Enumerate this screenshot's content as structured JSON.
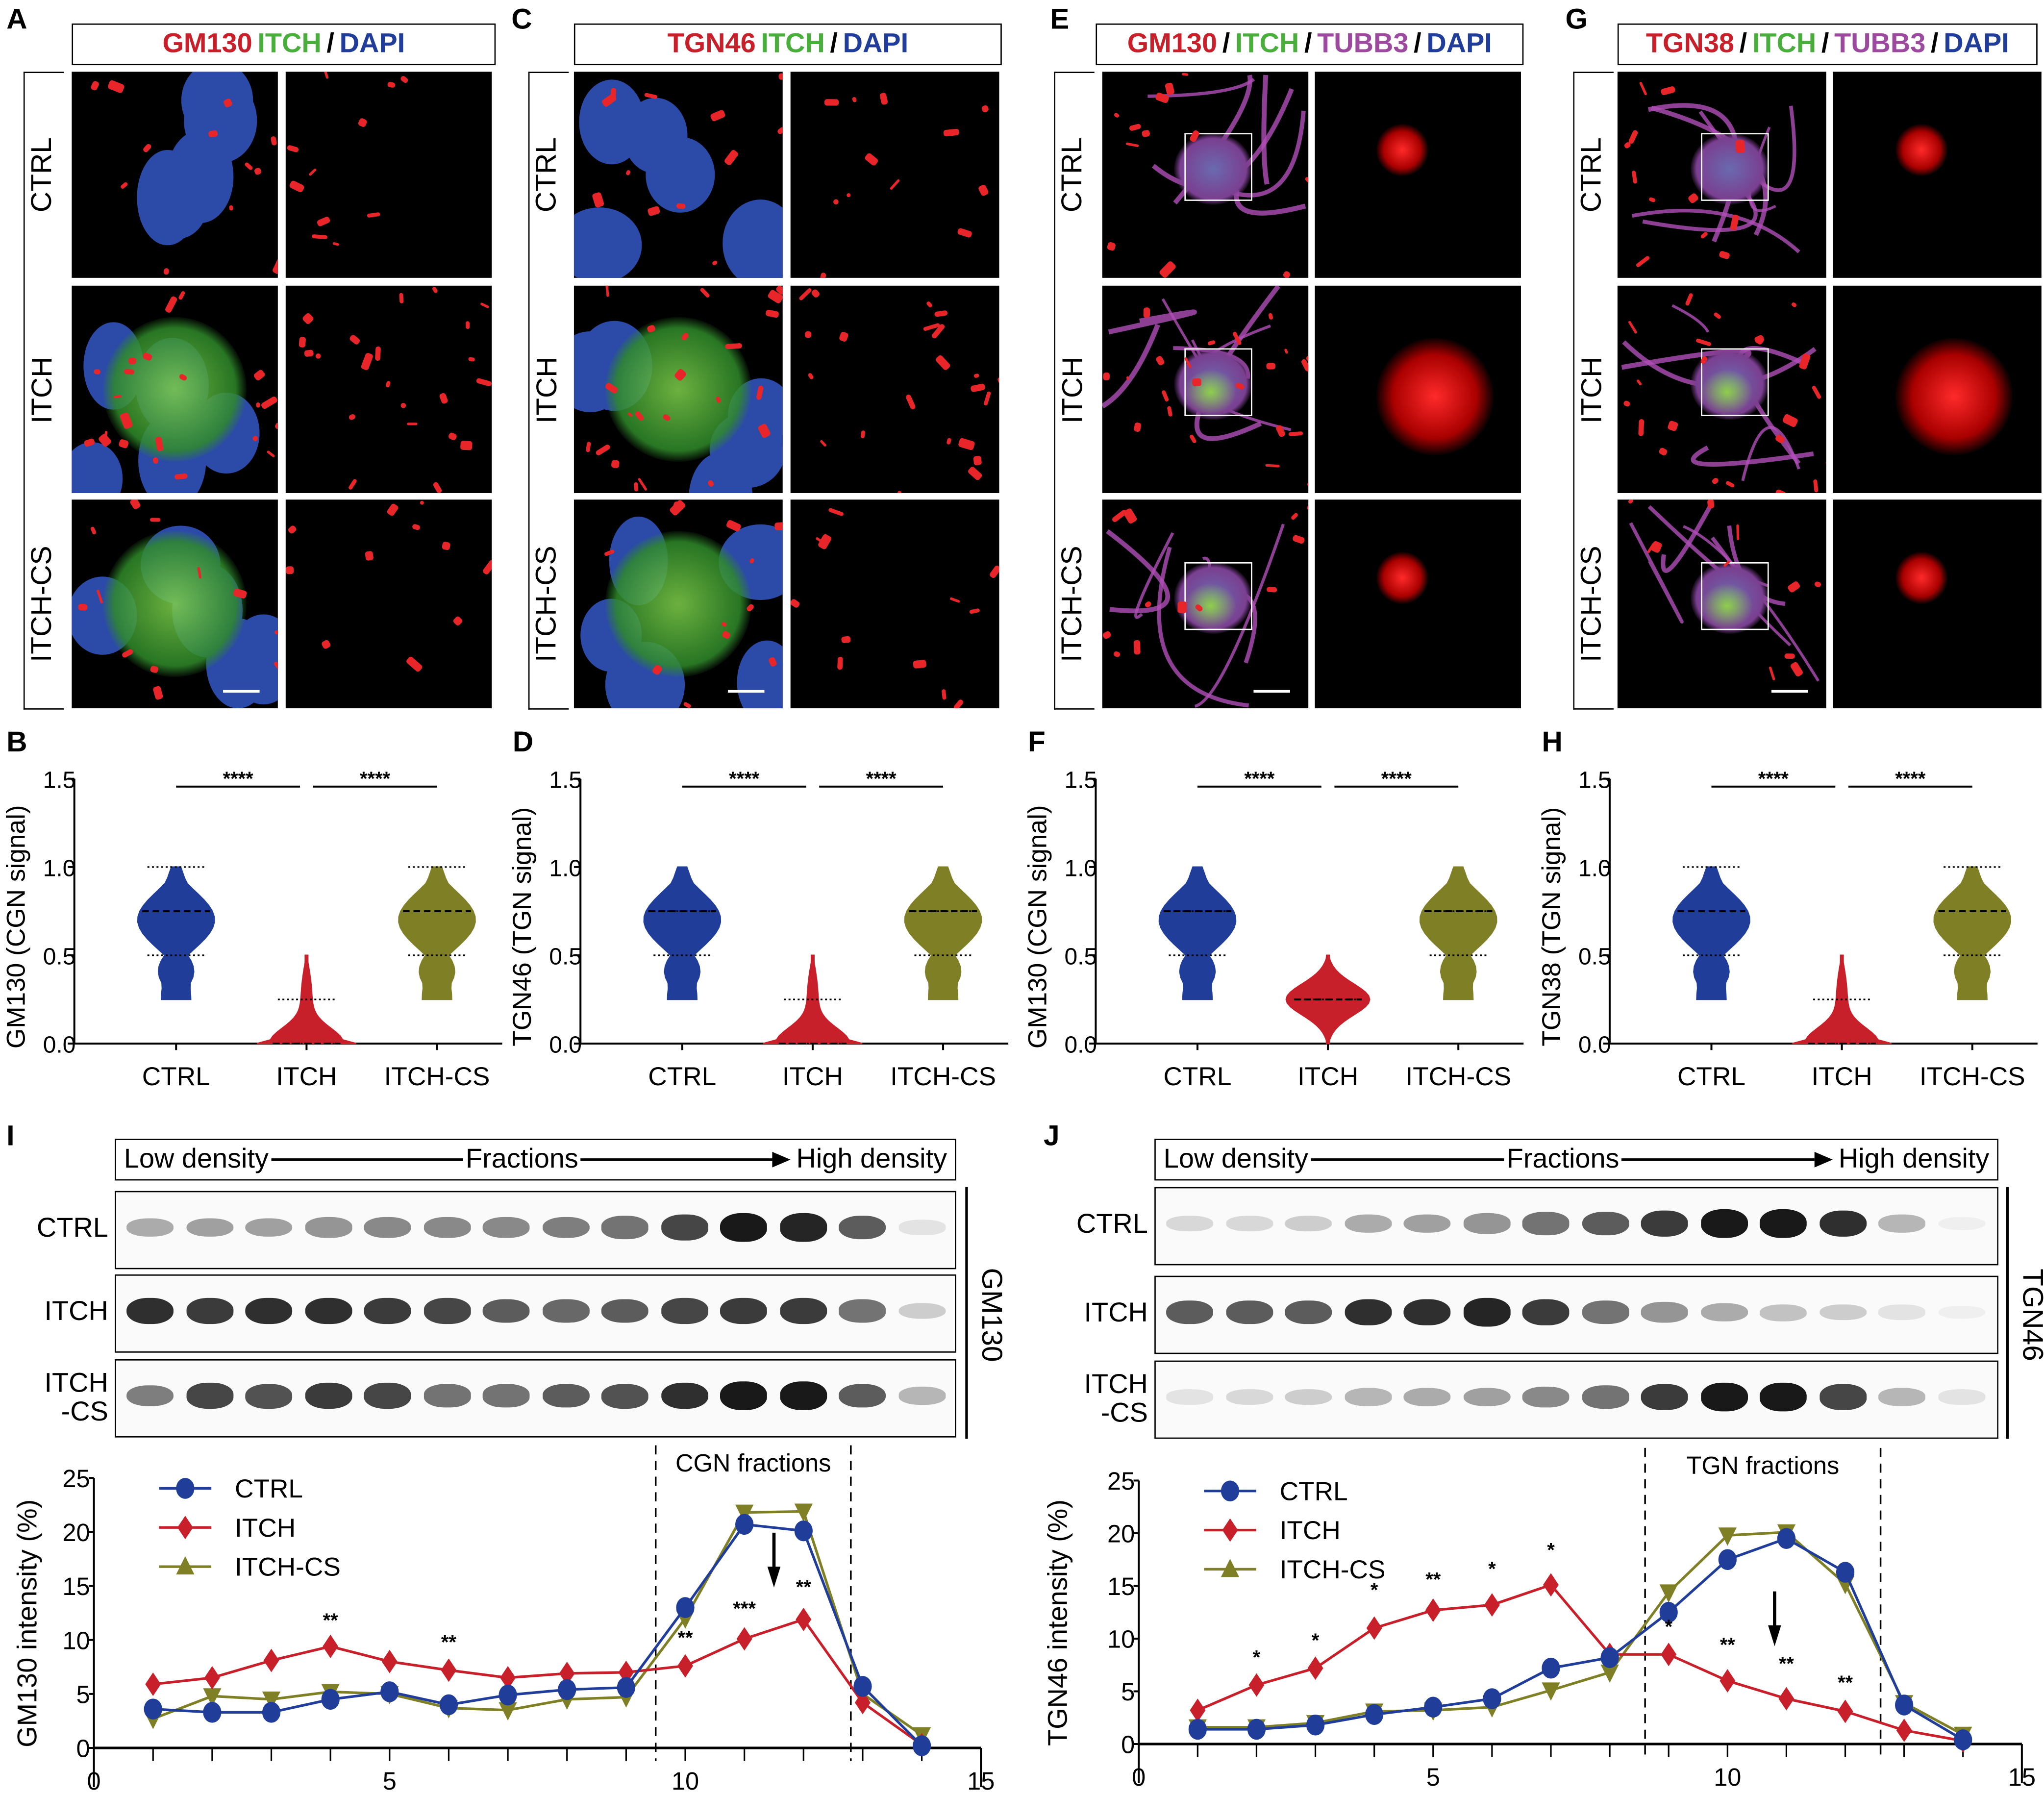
{
  "panels": {
    "A": {
      "letter": "A",
      "header": [
        {
          "t": "GM130",
          "c": "#c8202a"
        },
        {
          "t": "ITCH",
          "c": "#4aae3c"
        },
        {
          "t": "/",
          "c": "#000"
        },
        {
          "t": "DAPI",
          "c": "#1f3d99"
        }
      ],
      "rows": [
        "CTRL",
        "ITCH",
        "ITCH-CS"
      ]
    },
    "C": {
      "letter": "C",
      "header": [
        {
          "t": "TGN46",
          "c": "#c8202a"
        },
        {
          "t": "ITCH",
          "c": "#4aae3c"
        },
        {
          "t": "/",
          "c": "#000"
        },
        {
          "t": "DAPI",
          "c": "#1f3d99"
        }
      ],
      "rows": [
        "CTRL",
        "ITCH",
        "ITCH-CS"
      ]
    },
    "E": {
      "letter": "E",
      "header": [
        {
          "t": "GM130",
          "c": "#c8202a"
        },
        {
          "t": "/",
          "c": "#000"
        },
        {
          "t": "ITCH",
          "c": "#4aae3c"
        },
        {
          "t": "/",
          "c": "#000"
        },
        {
          "t": "TUBB3",
          "c": "#9b4a9e"
        },
        {
          "t": "/",
          "c": "#000"
        },
        {
          "t": "DAPI",
          "c": "#1f3d99"
        }
      ],
      "rows": [
        "CTRL",
        "ITCH",
        "ITCH-CS"
      ]
    },
    "G": {
      "letter": "G",
      "header": [
        {
          "t": "TGN38",
          "c": "#c8202a"
        },
        {
          "t": "/",
          "c": "#000"
        },
        {
          "t": "ITCH",
          "c": "#4aae3c"
        },
        {
          "t": "/",
          "c": "#000"
        },
        {
          "t": "TUBB3",
          "c": "#9b4a9e"
        },
        {
          "t": "/",
          "c": "#000"
        },
        {
          "t": "DAPI",
          "c": "#1f3d99"
        }
      ],
      "rows": [
        "CTRL",
        "ITCH",
        "ITCH-CS"
      ]
    }
  },
  "blots": {
    "I": {
      "letter": "I",
      "header": {
        "low": "Low density",
        "mid": "Fractions",
        "high": "High density"
      },
      "rows": [
        "CTRL",
        "ITCH",
        "ITCH\n-CS"
      ],
      "protein": "GM130"
    },
    "J": {
      "letter": "J",
      "header": {
        "low": "Low density",
        "mid": "Fractions",
        "high": "High density"
      },
      "rows": [
        "CTRL",
        "ITCH",
        "ITCH\n-CS"
      ],
      "protein": "TGN46"
    }
  },
  "colors": {
    "CTRL": "#1f3d99",
    "ITCH": "#c8202a",
    "ITCH-CS": "#7f7f26"
  },
  "chart_data": [
    {
      "id": "B",
      "letter": "B",
      "type": "violin",
      "ylabel": "GM130 (CGN signal)",
      "categories": [
        "CTRL",
        "ITCH",
        "ITCH-CS"
      ],
      "yticks": [
        "0.0",
        "0.5",
        "1.0",
        "1.5"
      ],
      "ylim": [
        0,
        1.5
      ],
      "medians": [
        0.75,
        0.0,
        0.75
      ],
      "quartiles": [
        [
          0.5,
          1.0
        ],
        [
          0,
          0.25
        ],
        [
          0.5,
          1.0
        ]
      ],
      "range": [
        [
          0.25,
          1.0
        ],
        [
          0,
          0.5
        ],
        [
          0.25,
          1.0
        ]
      ],
      "significance": [
        "****",
        "****"
      ]
    },
    {
      "id": "D",
      "letter": "D",
      "type": "violin",
      "ylabel": "TGN46 (TGN signal)",
      "categories": [
        "CTRL",
        "ITCH",
        "ITCH-CS"
      ],
      "yticks": [
        "0.0",
        "0.5",
        "1.0",
        "1.5"
      ],
      "ylim": [
        0,
        1.5
      ],
      "medians": [
        0.75,
        0.0,
        0.75
      ],
      "quartiles": [
        [
          0.5,
          0.75
        ],
        [
          0,
          0.25
        ],
        [
          0.5,
          0.75
        ]
      ],
      "range": [
        [
          0.25,
          1.0
        ],
        [
          0,
          0.5
        ],
        [
          0.25,
          1.0
        ]
      ],
      "significance": [
        "****",
        "****"
      ]
    },
    {
      "id": "F",
      "letter": "F",
      "type": "violin",
      "ylabel": "GM130 (CGN signal)",
      "categories": [
        "CTRL",
        "ITCH",
        "ITCH-CS"
      ],
      "yticks": [
        "0.0",
        "0.5",
        "1.0",
        "1.5"
      ],
      "ylim": [
        0,
        1.5
      ],
      "medians": [
        0.75,
        0.25,
        0.75
      ],
      "quartiles": [
        [
          0.5,
          0.75
        ],
        [
          0.25,
          0.25
        ],
        [
          0.5,
          0.75
        ]
      ],
      "range": [
        [
          0.25,
          1.0
        ],
        [
          0,
          0.5
        ],
        [
          0.25,
          1.0
        ]
      ],
      "significance": [
        "****",
        "****"
      ]
    },
    {
      "id": "H",
      "letter": "H",
      "type": "violin",
      "ylabel": "TGN38 (TGN signal)",
      "categories": [
        "CTRL",
        "ITCH",
        "ITCH-CS"
      ],
      "yticks": [
        "0.0",
        "0.5",
        "1.0",
        "1.5"
      ],
      "ylim": [
        0,
        1.5
      ],
      "medians": [
        0.75,
        0.0,
        0.75
      ],
      "quartiles": [
        [
          0.5,
          1.0
        ],
        [
          0,
          0.25
        ],
        [
          0.5,
          1.0
        ]
      ],
      "range": [
        [
          0.25,
          1.0
        ],
        [
          0,
          0.5
        ],
        [
          0.25,
          1.0
        ]
      ],
      "significance": [
        "****",
        "****"
      ]
    },
    {
      "id": "Ic",
      "type": "line",
      "ylabel": "GM130 intensity (%)",
      "xlim": [
        0,
        15
      ],
      "ylim": [
        0,
        25
      ],
      "xticks": [
        "0",
        "5",
        "10",
        "15"
      ],
      "yticks": [
        "0",
        "5",
        "10",
        "15",
        "20",
        "25"
      ],
      "region_label": "CGN fractions",
      "region": [
        9.5,
        12.8
      ],
      "arrow_x": 11.5,
      "legend": "top-left",
      "x": [
        1,
        2,
        3,
        4,
        5,
        6,
        7,
        8,
        9,
        10,
        11,
        12,
        13,
        14
      ],
      "series": [
        {
          "name": "CTRL",
          "values": [
            3.6,
            3.3,
            3.3,
            4.5,
            5.2,
            4.0,
            4.9,
            5.4,
            5.6,
            13.0,
            20.7,
            20.1,
            5.7,
            0.2
          ]
        },
        {
          "name": "ITCH",
          "values": [
            5.9,
            6.5,
            8.1,
            9.4,
            8.0,
            7.2,
            6.5,
            6.9,
            7.0,
            7.6,
            10.1,
            11.9,
            4.2,
            0.3
          ]
        },
        {
          "name": "ITCH-CS",
          "values": [
            2.7,
            4.8,
            4.5,
            5.2,
            5.0,
            3.7,
            3.5,
            4.5,
            4.7,
            12.0,
            21.8,
            21.9,
            5.0,
            1.2
          ]
        }
      ],
      "annotations": [
        {
          "x": 4,
          "t": "**",
          "y": 11.2
        },
        {
          "x": 6,
          "t": "**",
          "y": 9.2
        },
        {
          "x": 10,
          "t": "**",
          "y": 9.6
        },
        {
          "x": 11,
          "t": "***",
          "y": 12.3
        },
        {
          "x": 12,
          "t": "**",
          "y": 14.3
        }
      ]
    },
    {
      "id": "Jc",
      "type": "line",
      "ylabel": "TGN46 intensity (%)",
      "xlim": [
        0,
        15
      ],
      "ylim": [
        0,
        25
      ],
      "xticks": [
        "0",
        "5",
        "10",
        "15"
      ],
      "yticks": [
        "0",
        "5",
        "10",
        "15",
        "20",
        "25"
      ],
      "region_label": "TGN fractions",
      "region": [
        8.6,
        12.6
      ],
      "arrow_x": 10.8,
      "legend": "top-left",
      "x": [
        1,
        2,
        3,
        4,
        5,
        6,
        7,
        8,
        9,
        10,
        11,
        12,
        13,
        14
      ],
      "series": [
        {
          "name": "CTRL",
          "values": [
            1.4,
            1.4,
            1.8,
            2.8,
            3.5,
            4.3,
            7.2,
            8.2,
            12.5,
            17.5,
            19.5,
            16.3,
            3.7,
            0.4
          ]
        },
        {
          "name": "ITCH",
          "values": [
            3.2,
            5.6,
            7.2,
            11.0,
            12.7,
            13.2,
            15.1,
            8.5,
            8.5,
            6.0,
            4.3,
            3.1,
            1.3,
            0.3
          ]
        },
        {
          "name": "ITCH-CS",
          "values": [
            1.6,
            1.6,
            2.0,
            3.1,
            3.2,
            3.5,
            5.1,
            6.8,
            14.4,
            19.8,
            20.1,
            15.2,
            3.9,
            0.9
          ]
        }
      ],
      "annotations": [
        {
          "x": 2,
          "t": "*",
          "y": 7.6
        },
        {
          "x": 3,
          "t": "*",
          "y": 9.2
        },
        {
          "x": 4,
          "t": "*",
          "y": 14.0
        },
        {
          "x": 5,
          "t": "**",
          "y": 15.0
        },
        {
          "x": 6,
          "t": "*",
          "y": 16.0
        },
        {
          "x": 7,
          "t": "*",
          "y": 17.8
        },
        {
          "x": 9,
          "t": "*",
          "y": 10.5
        },
        {
          "x": 10,
          "t": "**",
          "y": 8.8
        },
        {
          "x": 11,
          "t": "**",
          "y": 7.0
        },
        {
          "x": 12,
          "t": "**",
          "y": 5.2
        }
      ]
    }
  ]
}
